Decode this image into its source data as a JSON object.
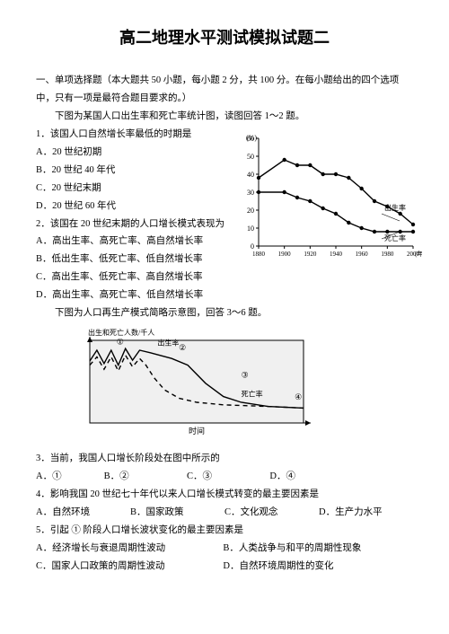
{
  "title": "高二地理水平测试模拟试题二",
  "section1_heading": "一、单项选择题（本大题共 50 小题，每小题 2 分，共 100 分。在每小题给出的四个选项中，只有一项是最符合题目要求的。）",
  "intro_1_2": "下图为某国人口出生率和死亡率统计图，读图回答 1～2 题。",
  "q1": {
    "stem": "1．该国人口自然增长率最低的时期是",
    "A": "A．20 世纪初期",
    "B": "B．20 世纪 40 年代",
    "C": "C．20 世纪末期",
    "D": "D．20 世纪 60 年代"
  },
  "q2": {
    "stem": "2．该国在 20 世纪末期的人口增长模式表现为",
    "A": "A．高出生率、高死亡率、高自然增长率",
    "B": "B．低出生率、低死亡率、低自然增长率",
    "C": "C．高出生率、低死亡率、高自然增长率",
    "D": "D．高出生率、高死亡率、低自然增长率"
  },
  "intro_3_6": "下图为人口再生产模式简略示意图，回答 3～6 题。",
  "q3": {
    "stem": "3．当前，我国人口增长阶段处在图中所示的",
    "A": "A．①",
    "B": "B．②",
    "C": "C．③",
    "D": "D．④"
  },
  "q4": {
    "stem": "4．影响我国 20 世纪七十年代以来人口增长模式转变的最主要因素是",
    "A": "A．自然环境",
    "B": "B．国家政策",
    "C": "C．文化观念",
    "D": "D．生产力水平"
  },
  "q5": {
    "stem": "5．引起 ① 阶段人口增长波状变化的最主要因素是",
    "A": "A．经济增长与衰退周期性波动",
    "B": "B．人类战争与和平的周期性现象",
    "C": "C．国家人口政策的周期性波动",
    "D": "D．自然环境周期性的变化"
  },
  "chart1": {
    "y_label": "(%)",
    "y_max": 60,
    "y_ticks": [
      0,
      10,
      20,
      30,
      40,
      50,
      60
    ],
    "x_label": "(年)",
    "x_ticks": [
      1880,
      1900,
      1920,
      1940,
      1960,
      1980,
      2000
    ],
    "series_birth_label": "出生率",
    "series_death_label": "死亡率",
    "birth": [
      [
        1880,
        38
      ],
      [
        1900,
        48
      ],
      [
        1910,
        45
      ],
      [
        1920,
        45
      ],
      [
        1930,
        40
      ],
      [
        1940,
        40
      ],
      [
        1950,
        38
      ],
      [
        1960,
        32
      ],
      [
        1970,
        25
      ],
      [
        1980,
        22
      ],
      [
        1990,
        18
      ],
      [
        2000,
        12
      ]
    ],
    "death": [
      [
        1880,
        30
      ],
      [
        1900,
        30
      ],
      [
        1910,
        27
      ],
      [
        1920,
        25
      ],
      [
        1930,
        21
      ],
      [
        1940,
        18
      ],
      [
        1950,
        13
      ],
      [
        1960,
        10
      ],
      [
        1970,
        8
      ],
      [
        1980,
        8
      ],
      [
        1990,
        8
      ],
      [
        2000,
        8
      ]
    ],
    "bg": "#ffffff",
    "line_color": "#000000",
    "marker": "circle",
    "marker_fill": "#000000"
  },
  "chart2": {
    "y_label": "出生和死亡人数/千人",
    "x_label": "时间",
    "series_birth_label": "出生率",
    "series_death_label": "死亡率",
    "stage_labels": [
      "①",
      "②",
      "③",
      "④"
    ],
    "birth_path": [
      [
        0,
        75
      ],
      [
        8,
        88
      ],
      [
        16,
        72
      ],
      [
        24,
        88
      ],
      [
        32,
        70
      ],
      [
        40,
        90
      ],
      [
        48,
        76
      ],
      [
        56,
        88
      ],
      [
        68,
        85
      ],
      [
        92,
        78
      ],
      [
        110,
        70
      ],
      [
        130,
        48
      ],
      [
        150,
        32
      ],
      [
        170,
        25
      ],
      [
        200,
        20
      ],
      [
        240,
        18
      ]
    ],
    "death_path": [
      [
        0,
        70
      ],
      [
        8,
        80
      ],
      [
        16,
        65
      ],
      [
        24,
        80
      ],
      [
        32,
        63
      ],
      [
        40,
        82
      ],
      [
        48,
        68
      ],
      [
        56,
        78
      ],
      [
        63,
        70
      ],
      [
        72,
        55
      ],
      [
        84,
        40
      ],
      [
        100,
        30
      ],
      [
        120,
        25
      ],
      [
        150,
        22
      ],
      [
        200,
        20
      ],
      [
        240,
        18
      ]
    ],
    "death_dash": "5,4",
    "bg": "#f0f0f0",
    "border_color": "#000000"
  }
}
